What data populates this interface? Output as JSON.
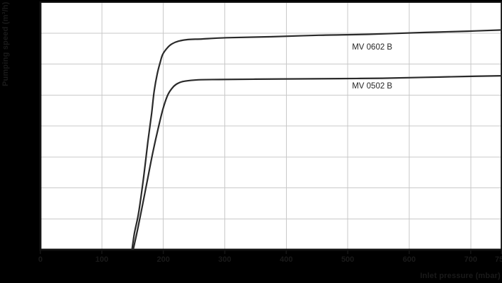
{
  "page": {
    "background": "#000000"
  },
  "colors": {
    "plot_background": "#ffffff",
    "gridline": "#c9c9c9",
    "plot_border": "#111111",
    "curve": "#2a2a2a",
    "series_label": "#262626",
    "axis_title": "#1a1a1a",
    "tick_label": "#1a1a1a",
    "tick_mark": "#161616"
  },
  "chart_data": {
    "type": "line",
    "title": "",
    "xlabel": "Inlet pressure (mbar)",
    "ylabel": "Pumping speed (m³/h)",
    "xlim": [
      0,
      750
    ],
    "ylim": [
      0,
      80
    ],
    "x_tick_values": [
      0,
      100,
      200,
      300,
      400,
      500,
      600,
      700,
      750
    ],
    "x_tick_labels": [
      "0",
      "100",
      "200",
      "300",
      "400",
      "500",
      "600",
      "700",
      "750"
    ],
    "x_gridline_step": 100,
    "y_gridline_step": 10,
    "y_tick_labels_visible": false,
    "grid": true,
    "legend": "inline-labels",
    "series": [
      {
        "name": "MV 0602 B",
        "label_anchor": [
          507,
          65.3
        ],
        "points": [
          [
            149,
            0
          ],
          [
            153,
            5.3
          ],
          [
            160,
            12.1
          ],
          [
            168,
            23.5
          ],
          [
            175,
            35.0
          ],
          [
            181,
            44.1
          ],
          [
            185,
            51.0
          ],
          [
            190,
            56.7
          ],
          [
            195,
            60.6
          ],
          [
            199,
            63.1
          ],
          [
            206,
            65.1
          ],
          [
            214,
            66.5
          ],
          [
            225,
            67.4
          ],
          [
            240,
            67.9
          ],
          [
            263,
            68.1
          ],
          [
            303,
            68.5
          ],
          [
            372,
            68.8
          ],
          [
            453,
            69.3
          ],
          [
            533,
            69.6
          ],
          [
            625,
            70.2
          ],
          [
            695,
            70.6
          ],
          [
            750,
            71.0
          ]
        ]
      },
      {
        "name": "MV 0502 B",
        "label_anchor": [
          507,
          52.7
        ],
        "points": [
          [
            151,
            0
          ],
          [
            158,
            6.4
          ],
          [
            165,
            13.3
          ],
          [
            174,
            22.4
          ],
          [
            183,
            31.5
          ],
          [
            192,
            39.5
          ],
          [
            200,
            45.9
          ],
          [
            208,
            50.3
          ],
          [
            217,
            52.8
          ],
          [
            225,
            53.9
          ],
          [
            236,
            54.5
          ],
          [
            257,
            54.9
          ],
          [
            291,
            55.0
          ],
          [
            349,
            55.1
          ],
          [
            418,
            55.2
          ],
          [
            487,
            55.3
          ],
          [
            556,
            55.4
          ],
          [
            625,
            55.7
          ],
          [
            695,
            56.0
          ],
          [
            750,
            56.2
          ]
        ]
      }
    ]
  }
}
